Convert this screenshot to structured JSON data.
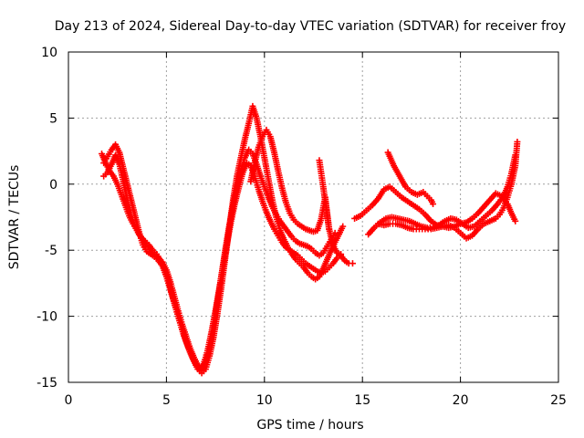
{
  "chart_data": {
    "type": "scatter",
    "title": "Day 213 of 2024, Sidereal Day-to-day VTEC variation (SDTVAR) for receiver froy",
    "xlabel": "GPS time / hours",
    "ylabel": "SDTVAR / TECUs",
    "xlim": [
      0,
      25
    ],
    "ylim": [
      -15,
      10
    ],
    "xticks": [
      0,
      5,
      10,
      15,
      20,
      25
    ],
    "yticks": [
      -15,
      -10,
      -5,
      0,
      5,
      10
    ],
    "x_tick_labels": [
      "0",
      "5",
      "10",
      "15",
      "20",
      "25"
    ],
    "y_tick_labels": [
      "-15",
      "-10",
      "-5",
      "0",
      "5",
      "10"
    ],
    "grid": true,
    "legend": "none",
    "marker": "plus",
    "marker_color": "#ff0000",
    "series": [
      {
        "points": [
          [
            1.7,
            2.3
          ],
          [
            1.9,
            1.6
          ],
          [
            2.1,
            1.0
          ],
          [
            2.3,
            0.6
          ],
          [
            2.5,
            0.0
          ],
          [
            2.7,
            -0.8
          ],
          [
            2.9,
            -1.6
          ],
          [
            3.1,
            -2.4
          ],
          [
            3.3,
            -3.0
          ],
          [
            3.5,
            -3.5
          ],
          [
            3.7,
            -4.0
          ],
          [
            3.9,
            -4.3
          ],
          [
            4.1,
            -4.6
          ],
          [
            4.3,
            -5.0
          ],
          [
            4.5,
            -5.3
          ],
          [
            4.7,
            -5.8
          ],
          [
            4.9,
            -6.4
          ],
          [
            5.1,
            -7.3
          ],
          [
            5.3,
            -8.4
          ],
          [
            5.5,
            -9.5
          ],
          [
            5.7,
            -10.5
          ],
          [
            5.9,
            -11.5
          ],
          [
            6.1,
            -12.3
          ],
          [
            6.3,
            -13.0
          ],
          [
            6.5,
            -13.6
          ],
          [
            6.7,
            -14.0
          ],
          [
            6.9,
            -13.6
          ],
          [
            7.1,
            -12.6
          ],
          [
            7.3,
            -11.2
          ],
          [
            7.5,
            -9.6
          ],
          [
            7.7,
            -7.9
          ],
          [
            7.9,
            -6.1
          ],
          [
            8.1,
            -4.4
          ],
          [
            8.3,
            -2.8
          ],
          [
            8.5,
            -1.4
          ],
          [
            8.7,
            -0.2
          ],
          [
            8.9,
            0.9
          ],
          [
            9.1,
            1.6
          ],
          [
            9.3,
            1.4
          ],
          [
            9.5,
            0.6
          ],
          [
            9.7,
            -0.4
          ],
          [
            9.9,
            -1.3
          ],
          [
            10.1,
            -2.1
          ],
          [
            10.3,
            -2.8
          ],
          [
            10.5,
            -3.4
          ],
          [
            10.7,
            -3.9
          ],
          [
            10.9,
            -4.4
          ],
          [
            11.1,
            -4.8
          ],
          [
            11.3,
            -5.0
          ],
          [
            11.5,
            -5.2
          ],
          [
            11.7,
            -5.4
          ],
          [
            11.9,
            -5.7
          ],
          [
            12.1,
            -6.0
          ],
          [
            12.3,
            -6.2
          ],
          [
            12.5,
            -6.4
          ],
          [
            12.7,
            -6.6
          ],
          [
            12.9,
            -6.7
          ],
          [
            13.1,
            -6.6
          ],
          [
            13.3,
            -6.3
          ],
          [
            13.5,
            -6.0
          ],
          [
            13.7,
            -5.6
          ],
          [
            13.9,
            -5.3
          ]
        ]
      },
      {
        "points": [
          [
            1.8,
            1.6
          ],
          [
            2.0,
            2.1
          ],
          [
            2.2,
            2.6
          ],
          [
            2.4,
            3.0
          ],
          [
            2.6,
            2.4
          ],
          [
            2.8,
            1.2
          ],
          [
            3.0,
            0.0
          ],
          [
            3.2,
            -1.2
          ],
          [
            3.4,
            -2.4
          ],
          [
            3.6,
            -3.6
          ],
          [
            3.8,
            -4.6
          ],
          [
            4.0,
            -5.1
          ],
          [
            4.2,
            -5.3
          ],
          [
            4.4,
            -5.5
          ],
          [
            4.6,
            -5.8
          ],
          [
            4.8,
            -6.2
          ],
          [
            5.0,
            -7.0
          ],
          [
            5.2,
            -8.0
          ],
          [
            5.4,
            -9.0
          ],
          [
            5.6,
            -10.0
          ],
          [
            5.8,
            -11.0
          ],
          [
            6.0,
            -11.9
          ],
          [
            6.2,
            -12.7
          ],
          [
            6.4,
            -13.4
          ],
          [
            6.6,
            -14.0
          ],
          [
            6.8,
            -14.3
          ],
          [
            7.0,
            -14.0
          ],
          [
            7.2,
            -13.0
          ],
          [
            7.4,
            -11.6
          ],
          [
            7.6,
            -9.8
          ],
          [
            7.8,
            -7.8
          ],
          [
            8.0,
            -5.6
          ],
          [
            8.2,
            -3.4
          ],
          [
            8.4,
            -1.2
          ],
          [
            8.6,
            0.6
          ],
          [
            8.8,
            2.0
          ],
          [
            9.0,
            3.4
          ],
          [
            9.2,
            4.6
          ],
          [
            9.4,
            5.9
          ],
          [
            9.6,
            5.0
          ],
          [
            9.8,
            3.6
          ],
          [
            10.0,
            2.0
          ],
          [
            10.2,
            0.4
          ],
          [
            10.4,
            -1.2
          ],
          [
            10.6,
            -2.5
          ],
          [
            10.8,
            -3.5
          ],
          [
            11.0,
            -4.2
          ],
          [
            11.2,
            -4.8
          ],
          [
            11.4,
            -5.3
          ],
          [
            11.6,
            -5.7
          ],
          [
            11.8,
            -6.0
          ],
          [
            12.0,
            -6.3
          ],
          [
            12.2,
            -6.7
          ],
          [
            12.4,
            -7.0
          ],
          [
            12.6,
            -7.2
          ],
          [
            12.8,
            -7.0
          ],
          [
            13.0,
            -6.4
          ],
          [
            13.2,
            -5.7
          ],
          [
            13.4,
            -5.0
          ],
          [
            13.6,
            -4.4
          ],
          [
            13.8,
            -3.8
          ],
          [
            14.0,
            -3.2
          ]
        ]
      },
      {
        "points": [
          [
            1.8,
            0.6
          ],
          [
            2.0,
            0.9
          ],
          [
            2.2,
            1.5
          ],
          [
            2.4,
            2.2
          ],
          [
            2.6,
            1.5
          ],
          [
            2.8,
            0.2
          ],
          [
            3.0,
            -1.2
          ],
          [
            3.2,
            -2.4
          ],
          [
            3.4,
            -3.2
          ],
          [
            3.6,
            -3.8
          ],
          [
            3.8,
            -4.2
          ],
          [
            4.0,
            -4.6
          ],
          [
            4.2,
            -5.1
          ],
          [
            4.4,
            -5.4
          ],
          [
            4.6,
            -5.6
          ],
          [
            4.8,
            -5.9
          ],
          [
            5.0,
            -6.5
          ],
          [
            5.2,
            -7.4
          ],
          [
            5.4,
            -8.5
          ],
          [
            5.6,
            -9.6
          ],
          [
            5.8,
            -10.6
          ],
          [
            6.0,
            -11.5
          ],
          [
            6.2,
            -12.4
          ],
          [
            6.4,
            -13.1
          ],
          [
            6.6,
            -13.7
          ],
          [
            6.8,
            -14.1
          ],
          [
            7.0,
            -13.5
          ],
          [
            7.2,
            -12.3
          ],
          [
            7.4,
            -10.7
          ],
          [
            7.6,
            -8.9
          ],
          [
            7.8,
            -7.0
          ],
          [
            8.0,
            -5.0
          ],
          [
            8.2,
            -3.2
          ],
          [
            8.4,
            -1.6
          ],
          [
            8.6,
            -0.2
          ],
          [
            8.8,
            1.0
          ],
          [
            9.0,
            2.0
          ],
          [
            9.2,
            2.6
          ],
          [
            9.4,
            2.3
          ],
          [
            9.6,
            1.5
          ],
          [
            9.8,
            0.6
          ],
          [
            10.0,
            -0.2
          ],
          [
            10.2,
            -1.0
          ],
          [
            10.4,
            -1.7
          ],
          [
            10.6,
            -2.3
          ],
          [
            10.8,
            -2.8
          ],
          [
            11.0,
            -3.2
          ],
          [
            11.2,
            -3.6
          ],
          [
            11.4,
            -4.0
          ],
          [
            11.6,
            -4.3
          ],
          [
            11.8,
            -4.5
          ],
          [
            12.0,
            -4.6
          ],
          [
            12.2,
            -4.7
          ],
          [
            12.4,
            -4.9
          ],
          [
            12.6,
            -5.2
          ],
          [
            12.8,
            -5.4
          ],
          [
            13.0,
            -5.2
          ],
          [
            13.2,
            -4.7
          ],
          [
            13.4,
            -4.2
          ],
          [
            13.6,
            -3.7
          ]
        ]
      },
      {
        "points": [
          [
            9.3,
            0.2
          ],
          [
            9.5,
            1.6
          ],
          [
            9.7,
            2.8
          ],
          [
            9.9,
            3.6
          ],
          [
            10.1,
            4.1
          ],
          [
            10.3,
            3.6
          ],
          [
            10.5,
            2.4
          ],
          [
            10.7,
            1.0
          ],
          [
            10.9,
            -0.3
          ],
          [
            11.1,
            -1.4
          ],
          [
            11.3,
            -2.2
          ],
          [
            11.5,
            -2.7
          ],
          [
            11.7,
            -3.0
          ],
          [
            11.9,
            -3.2
          ],
          [
            12.1,
            -3.4
          ],
          [
            12.3,
            -3.5
          ],
          [
            12.5,
            -3.6
          ],
          [
            12.7,
            -3.5
          ],
          [
            12.9,
            -2.6
          ],
          [
            13.1,
            -1.0
          ],
          [
            13.3,
            -3.4
          ],
          [
            13.5,
            -4.6
          ],
          [
            13.7,
            -5.2
          ],
          [
            13.9,
            -5.4
          ],
          [
            14.1,
            -5.8
          ],
          [
            14.3,
            -6.0
          ],
          [
            14.5,
            -6.0
          ]
        ]
      },
      {
        "points": [
          [
            12.8,
            1.8
          ],
          [
            12.9,
            0.8
          ],
          [
            13.0,
            -0.2
          ],
          [
            13.1,
            -1.3
          ],
          [
            13.2,
            -2.4
          ],
          [
            13.3,
            -3.4
          ]
        ]
      },
      {
        "points": [
          [
            14.6,
            -2.6
          ],
          [
            14.9,
            -2.4
          ],
          [
            15.2,
            -2.0
          ],
          [
            15.5,
            -1.6
          ],
          [
            15.8,
            -1.1
          ],
          [
            16.1,
            -0.4
          ],
          [
            16.4,
            -0.2
          ],
          [
            16.7,
            -0.6
          ],
          [
            17.0,
            -1.0
          ],
          [
            17.3,
            -1.3
          ],
          [
            17.6,
            -1.6
          ],
          [
            17.9,
            -1.9
          ],
          [
            18.2,
            -2.3
          ],
          [
            18.5,
            -2.8
          ],
          [
            18.8,
            -3.1
          ],
          [
            19.1,
            -3.2
          ],
          [
            19.4,
            -3.3
          ],
          [
            19.7,
            -3.2
          ],
          [
            20.0,
            -3.0
          ],
          [
            20.3,
            -2.9
          ],
          [
            20.6,
            -2.6
          ],
          [
            20.9,
            -2.2
          ],
          [
            21.2,
            -1.7
          ],
          [
            21.5,
            -1.2
          ],
          [
            21.8,
            -0.7
          ],
          [
            22.1,
            -0.9
          ],
          [
            22.4,
            -1.5
          ],
          [
            22.6,
            -2.2
          ],
          [
            22.8,
            -2.8
          ]
        ]
      },
      {
        "points": [
          [
            15.3,
            -3.8
          ],
          [
            15.6,
            -3.3
          ],
          [
            15.9,
            -2.9
          ],
          [
            16.2,
            -2.6
          ],
          [
            16.5,
            -2.5
          ],
          [
            16.8,
            -2.6
          ],
          [
            17.1,
            -2.7
          ],
          [
            17.4,
            -2.8
          ],
          [
            17.7,
            -3.0
          ],
          [
            18.0,
            -3.2
          ],
          [
            18.3,
            -3.3
          ],
          [
            18.6,
            -3.3
          ],
          [
            18.9,
            -3.1
          ],
          [
            19.2,
            -2.8
          ],
          [
            19.5,
            -2.6
          ],
          [
            19.8,
            -2.7
          ],
          [
            20.1,
            -3.0
          ],
          [
            20.4,
            -3.3
          ],
          [
            20.7,
            -3.2
          ],
          [
            21.0,
            -2.8
          ],
          [
            21.3,
            -2.4
          ],
          [
            21.6,
            -2.0
          ],
          [
            21.9,
            -1.5
          ],
          [
            22.2,
            -0.9
          ],
          [
            22.4,
            -0.2
          ],
          [
            22.6,
            0.8
          ],
          [
            22.8,
            2.2
          ]
        ]
      },
      {
        "points": [
          [
            16.3,
            2.4
          ],
          [
            16.6,
            1.4
          ],
          [
            16.9,
            0.6
          ],
          [
            17.2,
            -0.2
          ],
          [
            17.5,
            -0.6
          ],
          [
            17.8,
            -0.8
          ],
          [
            18.1,
            -0.6
          ],
          [
            18.3,
            -0.9
          ],
          [
            18.5,
            -1.2
          ],
          [
            18.6,
            -1.5
          ]
        ]
      },
      {
        "points": [
          [
            15.8,
            -3.0
          ],
          [
            16.1,
            -3.1
          ],
          [
            16.4,
            -3.0
          ],
          [
            16.7,
            -3.0
          ],
          [
            17.0,
            -3.1
          ],
          [
            17.3,
            -3.3
          ],
          [
            17.6,
            -3.4
          ],
          [
            17.9,
            -3.4
          ],
          [
            18.2,
            -3.4
          ],
          [
            18.5,
            -3.4
          ],
          [
            18.8,
            -3.3
          ],
          [
            19.1,
            -3.2
          ],
          [
            19.4,
            -3.1
          ],
          [
            19.7,
            -3.3
          ],
          [
            20.0,
            -3.7
          ],
          [
            20.3,
            -4.1
          ],
          [
            20.6,
            -3.9
          ],
          [
            20.9,
            -3.4
          ],
          [
            21.2,
            -3.0
          ],
          [
            21.5,
            -2.8
          ],
          [
            21.8,
            -2.6
          ],
          [
            22.0,
            -2.3
          ],
          [
            22.2,
            -1.8
          ],
          [
            22.4,
            -1.0
          ],
          [
            22.6,
            0.0
          ],
          [
            22.8,
            1.4
          ],
          [
            22.9,
            3.2
          ]
        ]
      }
    ]
  }
}
